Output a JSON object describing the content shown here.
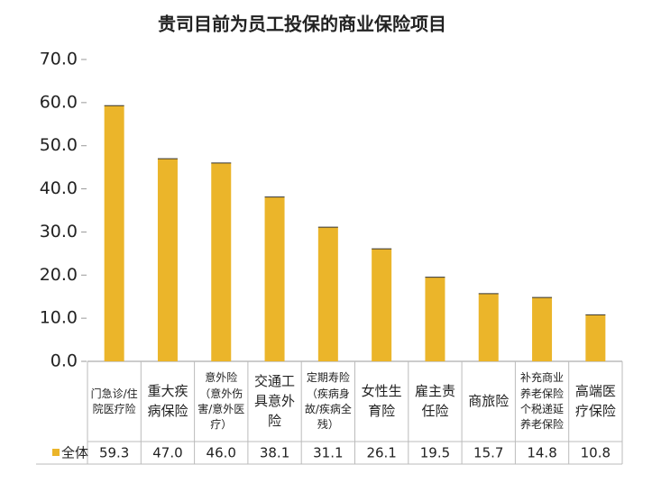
{
  "chart_data": {
    "type": "bar",
    "title": "贵司目前为员工投保的商业保险项目",
    "categories": [
      "门急诊/住院医疗险",
      "重大疾病保险",
      "意外险（意外伤害/意外医疗）",
      "交通工具意外险",
      "定期寿险（疾病身故/疾病全残）",
      "女性生育险",
      "雇主责任险",
      "商旅险",
      "补充商业养老保险个税递延养老保险",
      "高端医疗保险"
    ],
    "series": [
      {
        "name": "全体",
        "color": "#EBB52A",
        "values": [
          59.3,
          47.0,
          46.0,
          38.1,
          31.1,
          26.1,
          19.5,
          15.7,
          14.8,
          10.8
        ],
        "value_labels": [
          "59.3",
          "47.0",
          "46.0",
          "38.1",
          "31.1",
          "26.1",
          "19.5",
          "15.7",
          "14.8",
          "10.8"
        ]
      }
    ],
    "ylim": [
      0,
      70
    ],
    "yticks": [
      {
        "value": 0,
        "label": "0.0"
      },
      {
        "value": 10,
        "label": "10.0"
      },
      {
        "value": 20,
        "label": "20.0"
      },
      {
        "value": 30,
        "label": "30.0"
      },
      {
        "value": 40,
        "label": "40.0"
      },
      {
        "value": 50,
        "label": "50.0"
      },
      {
        "value": 60,
        "label": "60.0"
      },
      {
        "value": 70,
        "label": "70.0"
      }
    ]
  }
}
